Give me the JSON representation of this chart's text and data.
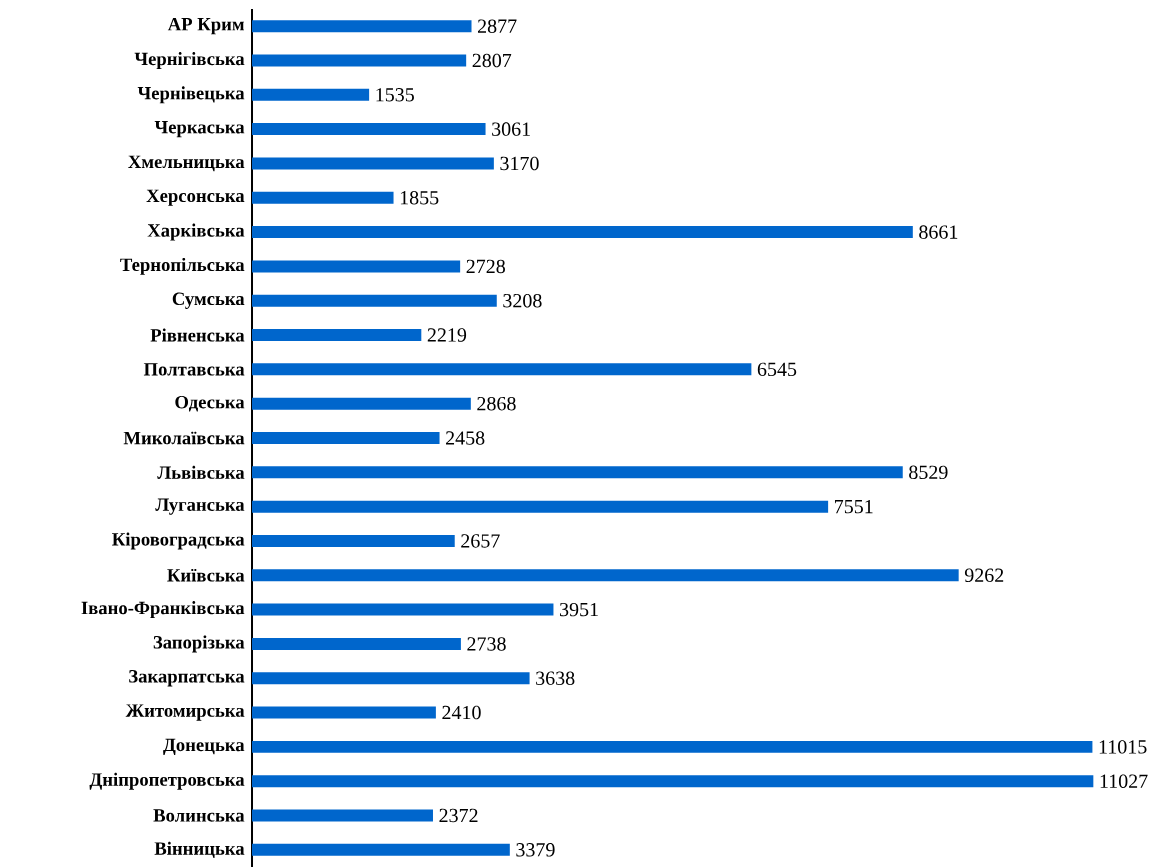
{
  "chart_data": {
    "type": "bar",
    "orientation": "horizontal",
    "data_labels": true,
    "color": "#0066cc",
    "categories": [
      "АР Крим",
      "Чернігівська",
      "Чернівецька",
      "Черкаська",
      "Хмельницька",
      "Херсонська",
      "Харківська",
      "Тернопільська",
      "Сумська",
      "Рівненська",
      "Полтавська",
      "Одеська",
      "Миколаївська",
      "Львівська",
      "Луганська",
      "Кіровоградська",
      "Київська",
      "Івано-Франківська",
      "Запорізька",
      "Закарпатська",
      "Житомирська",
      "Донецька",
      "Дніпропетровська",
      "Волинська",
      "Вінницька"
    ],
    "values": [
      2877,
      2807,
      1535,
      3061,
      3170,
      1855,
      8661,
      2728,
      3208,
      2219,
      6545,
      2868,
      2458,
      8529,
      7551,
      2657,
      9262,
      3951,
      2738,
      3638,
      2410,
      11015,
      11027,
      2372,
      3379
    ]
  }
}
